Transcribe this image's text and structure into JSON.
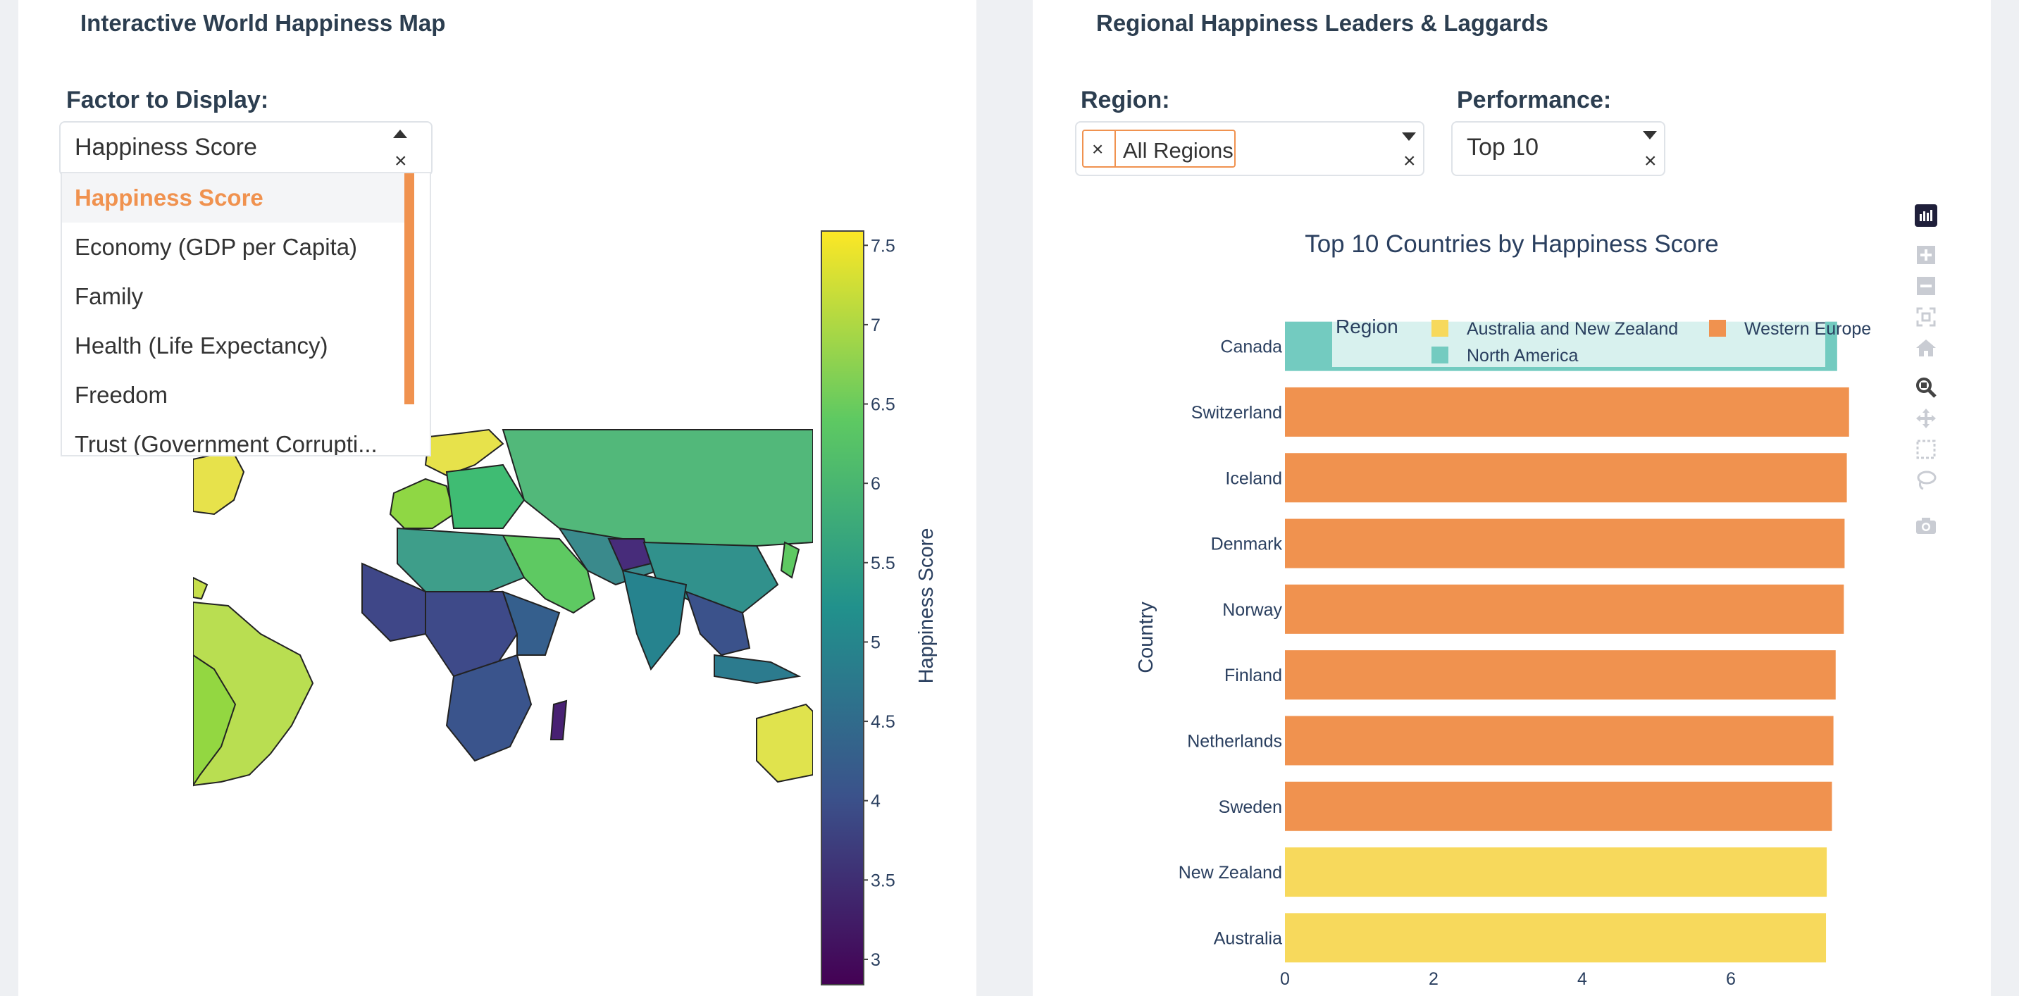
{
  "map_panel": {
    "title": "Interactive World Happiness Map",
    "factor_label": "Factor to Display:",
    "factor_selected": "Happiness Score",
    "factor_options": [
      "Happiness Score",
      "Economy (GDP per Capita)",
      "Family",
      "Health (Life Expectancy)",
      "Freedom",
      "Trust (Government Corrupti..."
    ],
    "colorbar": {
      "title": "Happiness Score",
      "ticks": [
        "7.5",
        "7",
        "6.5",
        "6",
        "5.5",
        "5",
        "4.5",
        "4",
        "3.5",
        "3"
      ],
      "tick_values": [
        7.5,
        7,
        6.5,
        6,
        5.5,
        5,
        4.5,
        4,
        3.5,
        3
      ],
      "range": [
        2.84,
        7.59
      ],
      "colorscale": [
        "#440154",
        "#3b528b",
        "#21918c",
        "#5ec962",
        "#fde725"
      ]
    }
  },
  "bar_panel": {
    "title": "Regional Happiness Leaders & Laggards",
    "region_label": "Region:",
    "region_chip": "All Regions",
    "performance_label": "Performance:",
    "performance_selected": "Top 10",
    "modebar_icons": [
      "plotly-logo-icon",
      "zoom-in-icon",
      "zoom-out-icon",
      "autoscale-icon",
      "reset-axes-icon",
      "zoom-icon",
      "pan-icon",
      "box-select-icon",
      "lasso-select-icon",
      "camera-icon"
    ]
  },
  "chart_data": {
    "type": "bar",
    "orientation": "horizontal",
    "title": "Top 10 Countries by Happiness Score",
    "ylabel": "Country",
    "xlabel": "",
    "xlim": [
      0,
      7.7
    ],
    "xticks": [
      "0",
      "2",
      "4",
      "6"
    ],
    "legend": {
      "title": "Region",
      "placement": "top-inside",
      "entries": [
        {
          "name": "Australia and New Zealand",
          "color": "#f7d95c"
        },
        {
          "name": "Western Europe",
          "color": "#f0924f"
        },
        {
          "name": "North America",
          "color": "#73cbc0"
        }
      ]
    },
    "categories": [
      "Canada",
      "Switzerland",
      "Iceland",
      "Denmark",
      "Norway",
      "Finland",
      "Netherlands",
      "Sweden",
      "New Zealand",
      "Australia"
    ],
    "values": [
      7.43,
      7.59,
      7.56,
      7.53,
      7.52,
      7.41,
      7.38,
      7.36,
      7.29,
      7.28
    ],
    "bar_regions": [
      "North America",
      "Western Europe",
      "Western Europe",
      "Western Europe",
      "Western Europe",
      "Western Europe",
      "Western Europe",
      "Western Europe",
      "Australia and New Zealand",
      "Australia and New Zealand"
    ]
  }
}
